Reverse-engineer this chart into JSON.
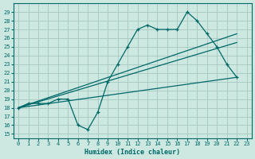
{
  "xlabel": "Humidex (Indice chaleur)",
  "bg_color": "#cce8e0",
  "grid_color": "#aaccc4",
  "line_color": "#006868",
  "xlim": [
    -0.5,
    23.5
  ],
  "ylim": [
    14.5,
    30
  ],
  "yticks": [
    15,
    16,
    17,
    18,
    19,
    20,
    21,
    22,
    23,
    24,
    25,
    26,
    27,
    28,
    29
  ],
  "xticks": [
    0,
    1,
    2,
    3,
    4,
    5,
    6,
    7,
    8,
    9,
    10,
    11,
    12,
    13,
    14,
    15,
    16,
    17,
    18,
    19,
    20,
    21,
    22,
    23
  ],
  "curve_x": [
    0,
    1,
    2,
    3,
    4,
    5,
    6,
    7,
    8,
    9,
    10,
    11,
    12,
    13,
    14,
    15,
    16,
    17,
    18,
    19,
    20,
    21,
    22
  ],
  "curve_y": [
    18,
    18.5,
    18.5,
    18.5,
    19,
    19,
    16,
    15.5,
    17.5,
    21,
    23,
    25,
    27,
    27.5,
    27,
    27,
    27,
    29,
    28,
    26.5,
    25,
    23,
    21.5
  ],
  "line1_x": [
    0,
    22
  ],
  "line1_y": [
    18,
    21.5
  ],
  "line2_x": [
    0,
    22
  ],
  "line2_y": [
    18,
    25.5
  ],
  "line3_x": [
    0,
    22
  ],
  "line3_y": [
    18,
    26.5
  ]
}
